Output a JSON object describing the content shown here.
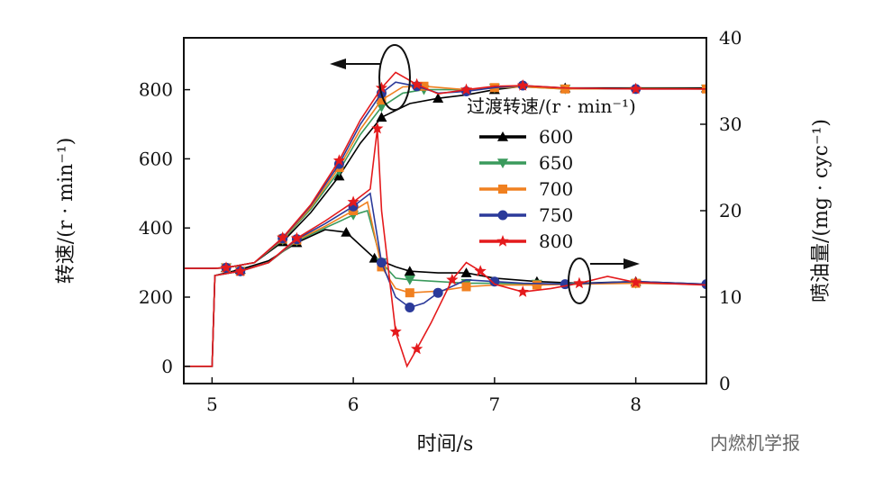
{
  "chart_data": {
    "type": "line",
    "title": "",
    "xlabel": "时间/s",
    "ylabel_left": "转速/(r · min⁻¹)",
    "ylabel_right": "喷油量/(mg · cyc⁻¹)",
    "xlim": [
      4.8,
      8.5
    ],
    "ylim_left": [
      -50,
      950
    ],
    "ylim_right": [
      0,
      40
    ],
    "xticks": [
      5,
      6,
      7,
      8
    ],
    "yticks_left": [
      0,
      200,
      400,
      600,
      800
    ],
    "yticks_right": [
      0,
      10,
      20,
      30,
      40
    ],
    "legend_title": "过渡转速/(r · min⁻¹)",
    "legend_position": "right",
    "series": [
      {
        "name": "600",
        "color": "#000000",
        "marker": "triangle-up",
        "speed": [
          [
            4.8,
            283
          ],
          [
            5.0,
            283
          ],
          [
            5.1,
            285
          ],
          [
            5.3,
            300
          ],
          [
            5.5,
            360
          ],
          [
            5.7,
            445
          ],
          [
            5.9,
            550
          ],
          [
            6.05,
            645
          ],
          [
            6.2,
            720
          ],
          [
            6.4,
            760
          ],
          [
            6.6,
            775
          ],
          [
            6.8,
            785
          ],
          [
            7.0,
            800
          ],
          [
            7.2,
            810
          ],
          [
            7.5,
            805
          ],
          [
            8.0,
            805
          ],
          [
            8.5,
            805
          ]
        ],
        "fuel": [
          [
            4.8,
            2
          ],
          [
            5.0,
            2
          ],
          [
            5.02,
            12.5
          ],
          [
            5.2,
            13.2
          ],
          [
            5.4,
            14.2
          ],
          [
            5.6,
            16.3
          ],
          [
            5.8,
            17.8
          ],
          [
            5.95,
            17.5
          ],
          [
            6.05,
            16
          ],
          [
            6.15,
            14.5
          ],
          [
            6.3,
            13.5
          ],
          [
            6.4,
            13
          ],
          [
            6.6,
            12.8
          ],
          [
            6.8,
            12.8
          ],
          [
            7.0,
            12.2
          ],
          [
            7.3,
            11.8
          ],
          [
            7.6,
            11.6
          ],
          [
            8.0,
            11.8
          ],
          [
            8.5,
            11.5
          ]
        ]
      },
      {
        "name": "650",
        "color": "#3a9a5c",
        "marker": "triangle-down",
        "speed": [
          [
            4.8,
            283
          ],
          [
            5.0,
            283
          ],
          [
            5.1,
            285
          ],
          [
            5.3,
            300
          ],
          [
            5.5,
            365
          ],
          [
            5.7,
            455
          ],
          [
            5.9,
            565
          ],
          [
            6.05,
            670
          ],
          [
            6.2,
            750
          ],
          [
            6.35,
            790
          ],
          [
            6.5,
            800
          ],
          [
            6.8,
            800
          ],
          [
            7.0,
            805
          ],
          [
            7.2,
            808
          ],
          [
            7.5,
            802
          ],
          [
            8.0,
            803
          ],
          [
            8.5,
            802
          ]
        ],
        "fuel": [
          [
            4.8,
            2
          ],
          [
            5.0,
            2
          ],
          [
            5.02,
            12.5
          ],
          [
            5.2,
            13
          ],
          [
            5.4,
            14
          ],
          [
            5.6,
            16.5
          ],
          [
            5.8,
            18
          ],
          [
            6.0,
            19.5
          ],
          [
            6.1,
            20
          ],
          [
            6.2,
            14
          ],
          [
            6.3,
            12.2
          ],
          [
            6.4,
            12
          ],
          [
            6.6,
            11.8
          ],
          [
            6.8,
            11.6
          ],
          [
            7.0,
            11.6
          ],
          [
            7.3,
            11.5
          ],
          [
            7.6,
            11.6
          ],
          [
            8.0,
            11.6
          ],
          [
            8.5,
            11.5
          ]
        ]
      },
      {
        "name": "700",
        "color": "#f08020",
        "marker": "square",
        "speed": [
          [
            4.8,
            283
          ],
          [
            5.0,
            283
          ],
          [
            5.1,
            285
          ],
          [
            5.3,
            300
          ],
          [
            5.5,
            368
          ],
          [
            5.7,
            460
          ],
          [
            5.9,
            575
          ],
          [
            6.05,
            685
          ],
          [
            6.2,
            770
          ],
          [
            6.35,
            808
          ],
          [
            6.5,
            810
          ],
          [
            6.8,
            800
          ],
          [
            7.0,
            806
          ],
          [
            7.2,
            808
          ],
          [
            7.5,
            802
          ],
          [
            8.0,
            803
          ],
          [
            8.5,
            802
          ]
        ],
        "fuel": [
          [
            4.8,
            2
          ],
          [
            5.0,
            2
          ],
          [
            5.02,
            12.5
          ],
          [
            5.2,
            13
          ],
          [
            5.4,
            14
          ],
          [
            5.6,
            16.6
          ],
          [
            5.8,
            18.2
          ],
          [
            6.0,
            20
          ],
          [
            6.1,
            21
          ],
          [
            6.2,
            13.5
          ],
          [
            6.3,
            11
          ],
          [
            6.4,
            10.5
          ],
          [
            6.6,
            10.7
          ],
          [
            6.8,
            11.2
          ],
          [
            7.0,
            11.4
          ],
          [
            7.3,
            11.4
          ],
          [
            7.6,
            11.5
          ],
          [
            8.0,
            11.6
          ],
          [
            8.5,
            11.5
          ]
        ]
      },
      {
        "name": "750",
        "color": "#2b3a9a",
        "marker": "circle",
        "speed": [
          [
            4.8,
            283
          ],
          [
            5.0,
            283
          ],
          [
            5.1,
            285
          ],
          [
            5.3,
            300
          ],
          [
            5.5,
            370
          ],
          [
            5.7,
            465
          ],
          [
            5.9,
            585
          ],
          [
            6.05,
            700
          ],
          [
            6.2,
            790
          ],
          [
            6.3,
            822
          ],
          [
            6.45,
            810
          ],
          [
            6.6,
            790
          ],
          [
            6.8,
            795
          ],
          [
            7.0,
            806
          ],
          [
            7.2,
            812
          ],
          [
            7.5,
            805
          ],
          [
            8.0,
            802
          ],
          [
            8.5,
            802
          ]
        ],
        "fuel": [
          [
            4.8,
            2
          ],
          [
            5.0,
            2
          ],
          [
            5.02,
            12.5
          ],
          [
            5.2,
            13
          ],
          [
            5.4,
            14
          ],
          [
            5.6,
            16.7
          ],
          [
            5.8,
            18.5
          ],
          [
            6.0,
            20.5
          ],
          [
            6.12,
            22
          ],
          [
            6.2,
            14
          ],
          [
            6.3,
            10
          ],
          [
            6.4,
            8.8
          ],
          [
            6.5,
            9.3
          ],
          [
            6.6,
            10.5
          ],
          [
            6.8,
            12
          ],
          [
            7.0,
            11.8
          ],
          [
            7.2,
            11.6
          ],
          [
            7.5,
            11.5
          ],
          [
            8.0,
            11.8
          ],
          [
            8.5,
            11.5
          ]
        ]
      },
      {
        "name": "800",
        "color": "#e41a1c",
        "marker": "star",
        "speed": [
          [
            4.8,
            283
          ],
          [
            5.0,
            283
          ],
          [
            5.1,
            285
          ],
          [
            5.3,
            300
          ],
          [
            5.5,
            372
          ],
          [
            5.7,
            468
          ],
          [
            5.9,
            595
          ],
          [
            6.05,
            712
          ],
          [
            6.2,
            805
          ],
          [
            6.3,
            850
          ],
          [
            6.45,
            815
          ],
          [
            6.6,
            788
          ],
          [
            6.8,
            800
          ],
          [
            7.0,
            810
          ],
          [
            7.2,
            812
          ],
          [
            7.5,
            805
          ],
          [
            8.0,
            802
          ],
          [
            8.5,
            802
          ]
        ],
        "fuel": [
          [
            4.8,
            2
          ],
          [
            5.0,
            2
          ],
          [
            5.02,
            12.5
          ],
          [
            5.2,
            13
          ],
          [
            5.4,
            14
          ],
          [
            5.6,
            16.8
          ],
          [
            5.8,
            18.8
          ],
          [
            6.0,
            21
          ],
          [
            6.12,
            22.5
          ],
          [
            6.17,
            29.5
          ],
          [
            6.2,
            20
          ],
          [
            6.3,
            6
          ],
          [
            6.38,
            2
          ],
          [
            6.45,
            4
          ],
          [
            6.55,
            7
          ],
          [
            6.7,
            12
          ],
          [
            6.8,
            14
          ],
          [
            6.9,
            13
          ],
          [
            7.0,
            11.5
          ],
          [
            7.2,
            10.6
          ],
          [
            7.4,
            11
          ],
          [
            7.6,
            11.6
          ],
          [
            7.8,
            12.4
          ],
          [
            8.0,
            11.7
          ],
          [
            8.5,
            11.4
          ]
        ]
      }
    ]
  },
  "watermark": "内燃机学报"
}
